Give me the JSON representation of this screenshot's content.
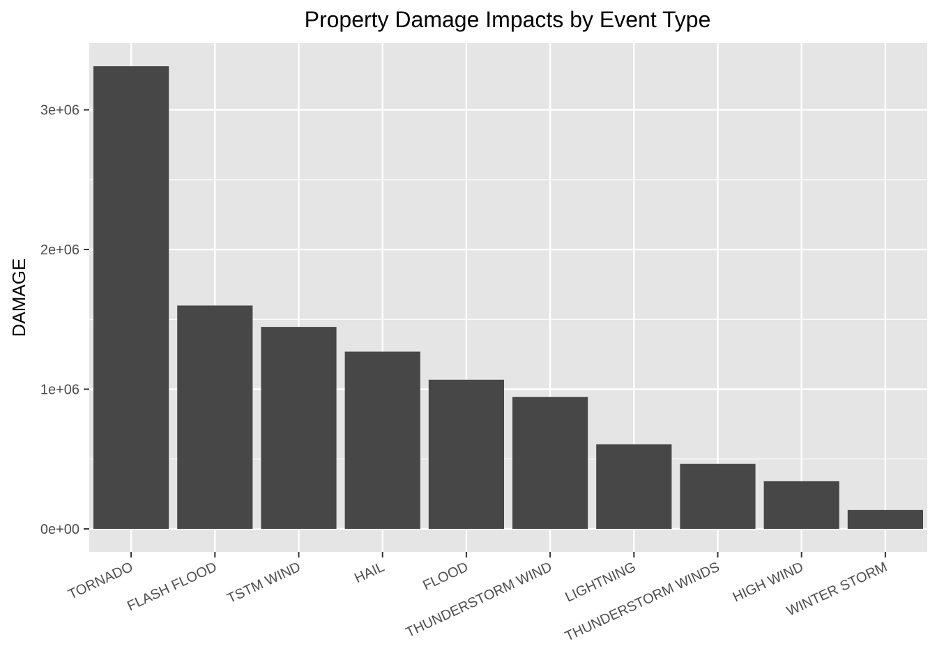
{
  "chart_data": {
    "type": "bar",
    "title": "Property Damage Impacts by Event Type",
    "xlabel": "",
    "ylabel": "DAMAGE",
    "categories": [
      "TORNADO",
      "FLASH FLOOD",
      "TSTM WIND",
      "HAIL",
      "FLOOD",
      "THUNDERSTORM WIND",
      "LIGHTNING",
      "THUNDERSTORM WINDS",
      "HIGH WIND",
      "WINTER STORM"
    ],
    "values": [
      3312000,
      1599000,
      1446000,
      1269000,
      1068000,
      944000,
      606000,
      465000,
      342000,
      135000
    ],
    "ylim": [
      -165000,
      3477000
    ],
    "yticks": [
      0,
      1000000,
      2000000,
      3000000
    ],
    "ytick_labels": [
      "0e+00",
      "1e+06",
      "2e+06",
      "3e+06"
    ],
    "grid": true,
    "legend": "none",
    "colors": {
      "panel_background": "#e5e5e5",
      "grid_line": "#ffffff",
      "bar_fill": "#474747",
      "axis_text": "#4d4d4d",
      "tick_mark": "#333333"
    }
  }
}
